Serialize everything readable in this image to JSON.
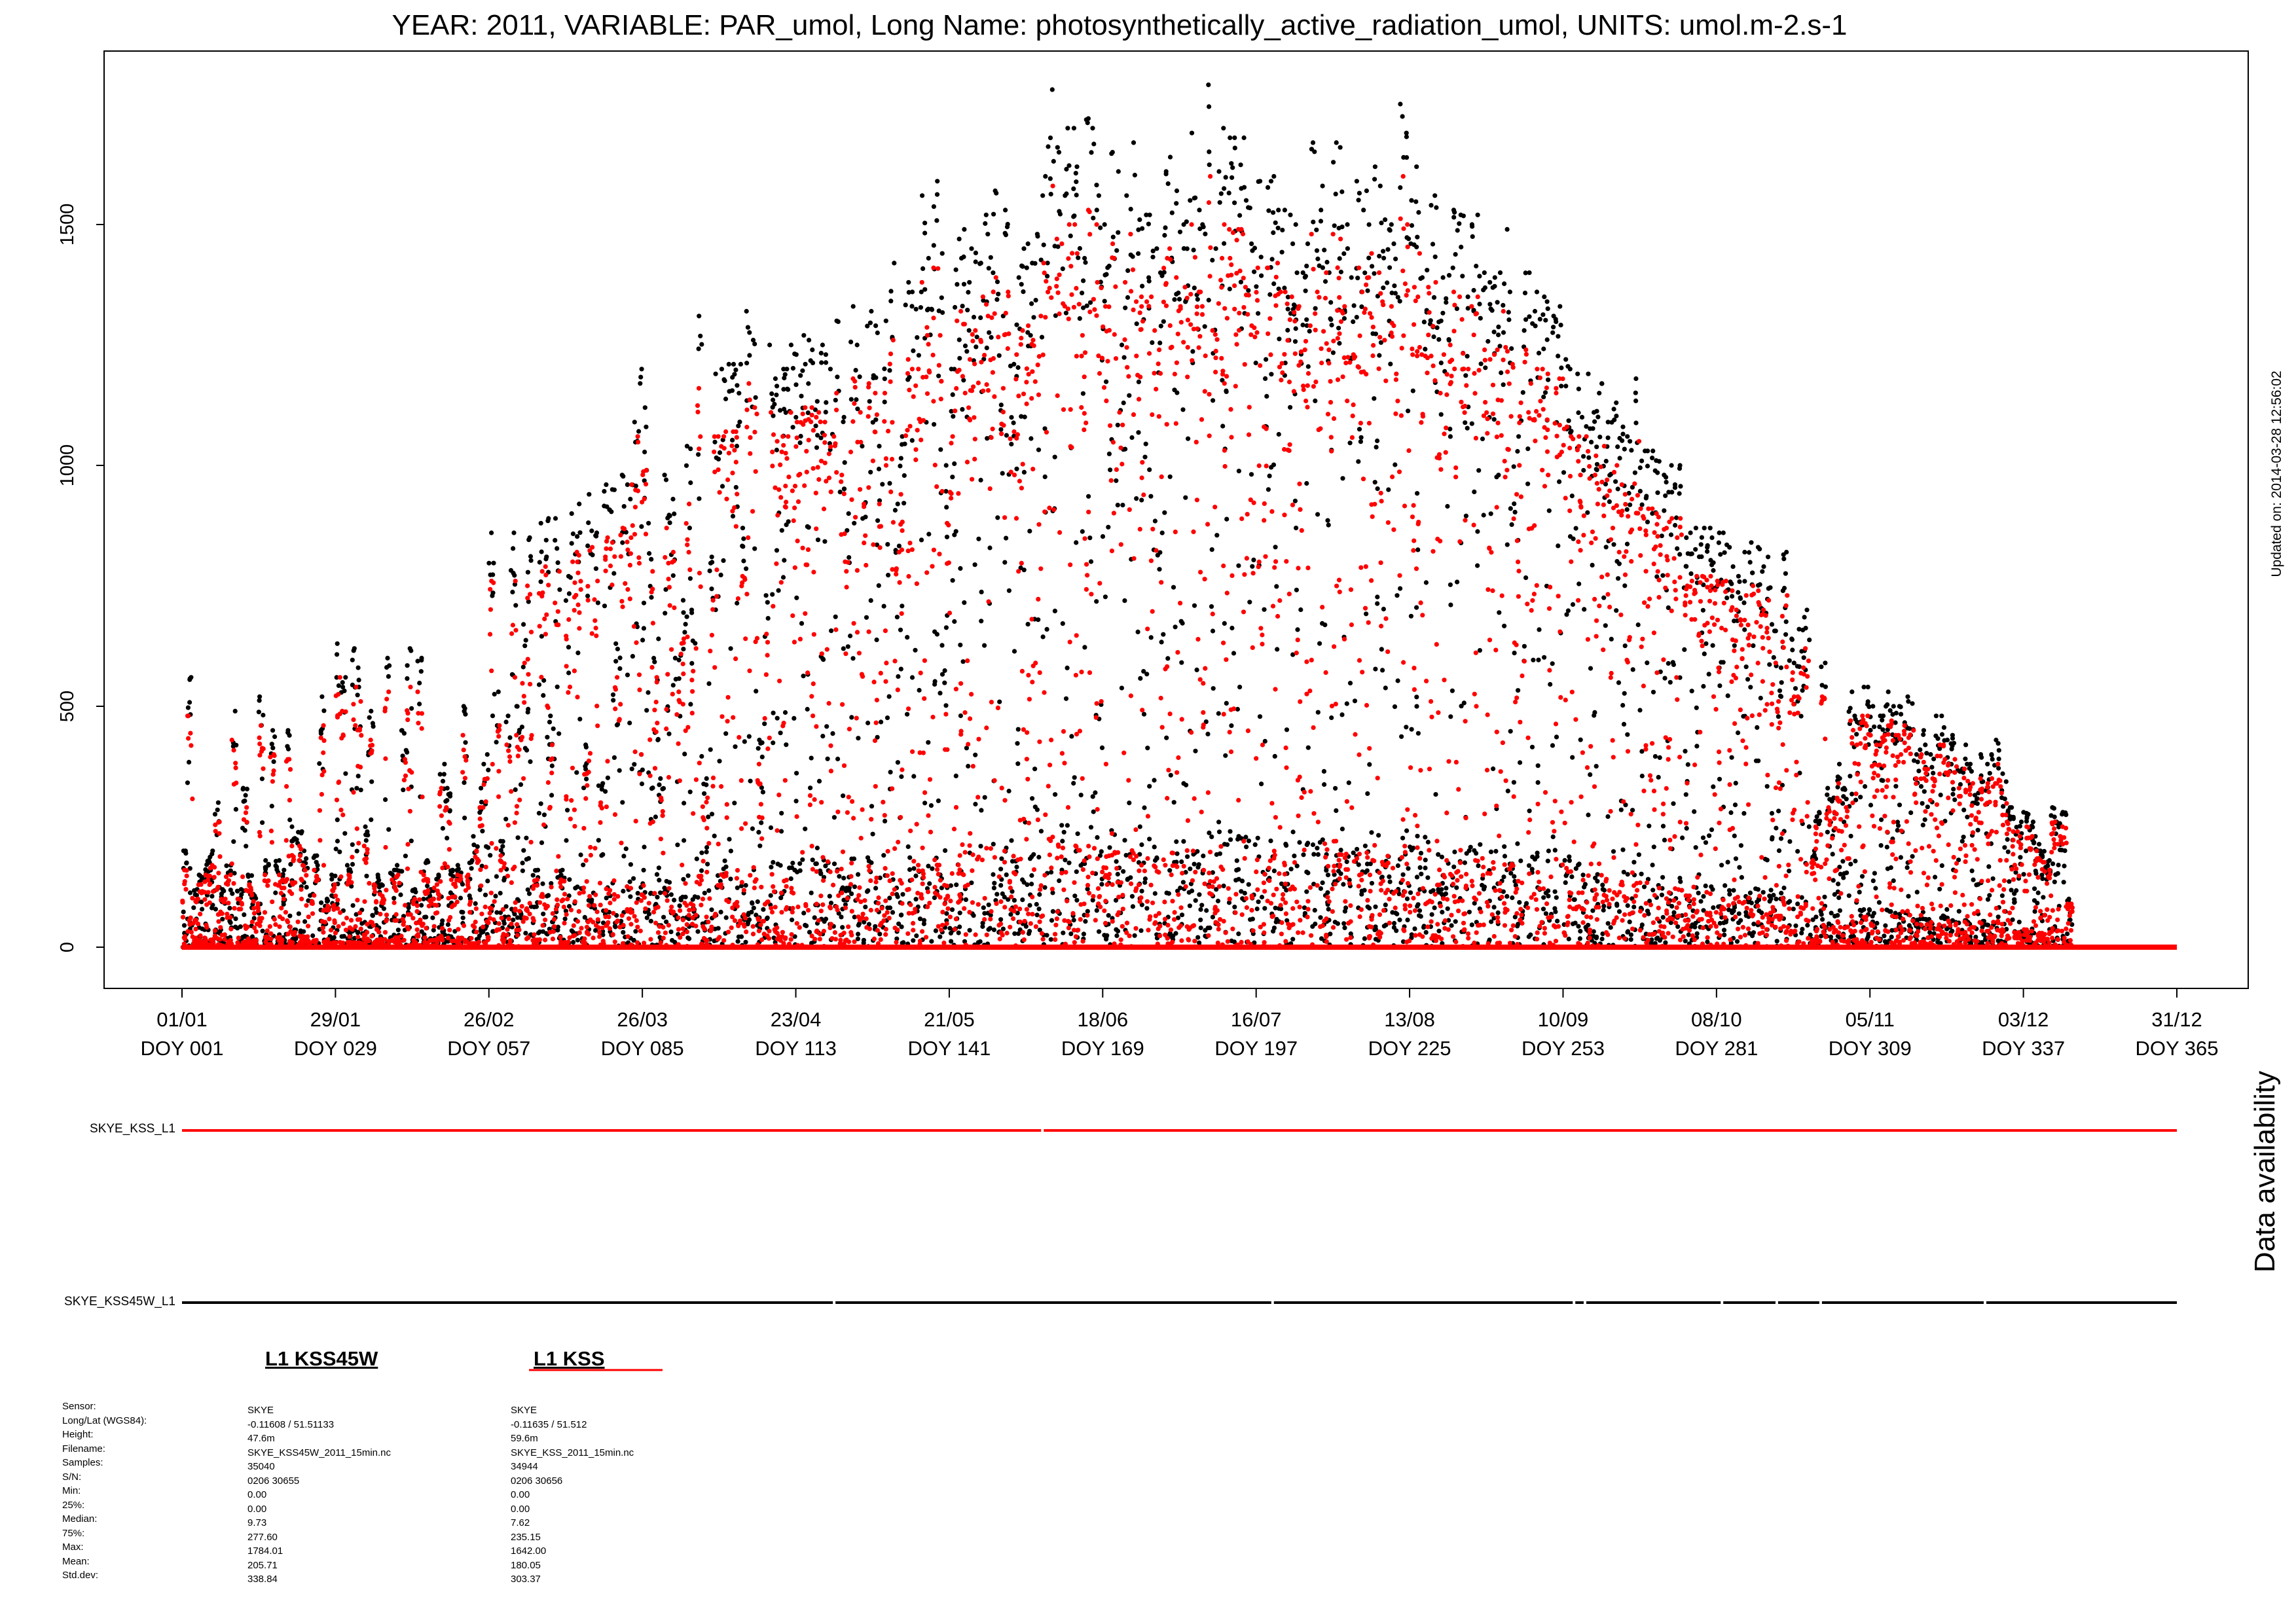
{
  "title": "YEAR: 2011, VARIABLE: PAR_umol, Long Name: photosynthetically_active_radiation_umol, UNITS: umol.m-2.s-1",
  "updated_text": "Updated on: 2014-03-28 12:56:02",
  "availability_title": "Data availability",
  "chart_data": {
    "type": "scatter",
    "title": "YEAR: 2011, VARIABLE: PAR_umol, Long Name: photosynthetically_active_radiation_umol, UNITS: umol.m-2.s-1",
    "xlabel": "",
    "ylabel": "",
    "xlim": [
      1,
      365
    ],
    "ylim": [
      0,
      1800
    ],
    "yticks": [
      0,
      500,
      1000,
      1500
    ],
    "xticks": [
      {
        "date": "01/01",
        "doy": "DOY 001",
        "value": 1
      },
      {
        "date": "29/01",
        "doy": "DOY 029",
        "value": 29
      },
      {
        "date": "26/02",
        "doy": "DOY 057",
        "value": 57
      },
      {
        "date": "26/03",
        "doy": "DOY 085",
        "value": 85
      },
      {
        "date": "23/04",
        "doy": "DOY 113",
        "value": 113
      },
      {
        "date": "21/05",
        "doy": "DOY 141",
        "value": 141
      },
      {
        "date": "18/06",
        "doy": "DOY 169",
        "value": 169
      },
      {
        "date": "16/07",
        "doy": "DOY 197",
        "value": 197
      },
      {
        "date": "13/08",
        "doy": "DOY 225",
        "value": 225
      },
      {
        "date": "10/09",
        "doy": "DOY 253",
        "value": 253
      },
      {
        "date": "08/10",
        "doy": "DOY 281",
        "value": 281
      },
      {
        "date": "05/11",
        "doy": "DOY 309",
        "value": 309
      },
      {
        "date": "03/12",
        "doy": "DOY 337",
        "value": 337
      },
      {
        "date": "31/12",
        "doy": "DOY 365",
        "value": 365
      }
    ],
    "series": [
      {
        "name": "L1 KSS45W",
        "color": "#000000",
        "daily_max": [
          200,
          560,
          120,
          150,
          180,
          200,
          300,
          120,
          170,
          490,
          120,
          330,
          150,
          110,
          520,
          180,
          450,
          180,
          160,
          450,
          250,
          240,
          200,
          110,
          190,
          520,
          100,
          150,
          630,
          560,
          170,
          620,
          580,
          250,
          490,
          150,
          130,
          600,
          160,
          170,
          450,
          620,
          120,
          600,
          180,
          120,
          150,
          380,
          330,
          160,
          170,
          500,
          180,
          230,
          330,
          400,
          860,
          530,
          220,
          480,
          860,
          500,
          670,
          850,
          160,
          880,
          890,
          480,
          890,
          160,
          770,
          900,
          920,
          420,
          940,
          860,
          340,
          960,
          950,
          630,
          980,
          960,
          1090,
          1200,
          1120,
          880,
          640,
          350,
          980,
          930,
          600,
          720,
          1040,
          700,
          1310,
          350,
          810,
          1190,
          1200,
          1210,
          1210,
          1210,
          870,
          1320,
          1260,
          430,
          730,
          1250,
          1180,
          1200,
          1200,
          1250,
          1230,
          1270,
          1260,
          1240,
          1250,
          1230,
          1200,
          1300,
          1100,
          900,
          1330,
          1250,
          1040,
          1320,
          1290,
          1040,
          1300,
          1420,
          920,
          1060,
          1380,
          1360,
          1360,
          1560,
          1430,
          1590,
          1440,
          1000,
          1200,
          1470,
          1490,
          1380,
          1450,
          1420,
          1520,
          1480,
          1570,
          1310,
          1530,
          1210,
          1390,
          1450,
          1460,
          1420,
          1480,
          1600,
          1780,
          1660,
          1650,
          1700,
          1700,
          1620,
          1430,
          1720,
          1700,
          1560,
          1500,
          1650,
          1610,
          1250,
          1560,
          1670,
          1510,
          1520,
          1520,
          1450,
          1400,
          1610,
          1640,
          1570,
          1500,
          1550,
          1690,
          1530,
          1500,
          1790,
          1450,
          1610,
          1700,
          1680,
          1680,
          1680,
          1550,
          1460,
          1590,
          1220,
          1590,
          1600,
          1530,
          1530,
          1520,
          1500,
          1400,
          1460,
          1670,
          1530,
          1580,
          1400,
          1670,
          1660,
          1500,
          1390,
          1590,
          1530,
          1570,
          1620,
          1580,
          1510,
          1500,
          1460,
          1750,
          1690,
          1550,
          1620,
          1390,
          1540,
          1560,
          1300,
          1390,
          1410,
          1530,
          1520,
          1350,
          1500,
          1520,
          1400,
          1380,
          1390,
          1400,
          1490,
          1360,
          1060,
          1280,
          1400,
          1320,
          1360,
          1350,
          1340,
          1310,
          1330,
          1220,
          1200,
          1190,
          1100,
          1190,
          1110,
          1150,
          1170,
          1090,
          1130,
          1080,
          1060,
          1050,
          1180,
          1030,
          1030,
          1030,
          1010,
          980,
          1000,
          960,
          1000,
          850,
          860,
          870,
          870,
          870,
          850,
          860,
          860,
          830,
          790,
          770,
          820,
          840,
          830,
          790,
          810,
          670,
          580,
          820,
          640,
          590,
          660,
          700,
          200,
          280,
          590,
          330,
          310,
          380,
          330,
          530,
          480,
          540,
          540,
          500,
          480,
          500,
          530,
          500,
          500,
          520,
          510,
          400,
          450,
          420,
          400,
          480,
          480,
          430,
          440,
          370,
          420,
          380,
          320,
          400,
          380,
          400,
          430,
          360,
          290,
          270,
          260,
          280,
          260,
          230,
          200,
          180,
          290,
          260,
          280,
          100
        ]
      },
      {
        "name": "L1 KSS",
        "color": "#ff0000",
        "daily_max": [
          160,
          480,
          100,
          130,
          150,
          170,
          260,
          100,
          150,
          430,
          100,
          290,
          130,
          95,
          460,
          150,
          400,
          150,
          140,
          390,
          210,
          210,
          170,
          95,
          160,
          460,
          85,
          130,
          560,
          490,
          150,
          540,
          510,
          210,
          430,
          130,
          110,
          530,
          140,
          150,
          390,
          540,
          100,
          530,
          150,
          100,
          130,
          330,
          290,
          140,
          150,
          440,
          150,
          200,
          290,
          350,
          760,
          460,
          190,
          420,
          760,
          440,
          590,
          750,
          140,
          780,
          790,
          420,
          780,
          140,
          680,
          800,
          820,
          360,
          830,
          760,
          300,
          850,
          840,
          560,
          870,
          850,
          960,
          1060,
          990,
          780,
          560,
          310,
          870,
          820,
          530,
          640,
          920,
          620,
          1160,
          310,
          720,
          1060,
          1060,
          1070,
          1070,
          1070,
          770,
          1170,
          1120,
          380,
          650,
          1110,
          1050,
          1060,
          1060,
          1110,
          1090,
          1120,
          1120,
          1100,
          1110,
          1090,
          1060,
          1150,
          980,
          800,
          1180,
          1110,
          920,
          1170,
          1150,
          920,
          1150,
          1260,
          820,
          940,
          1220,
          1200,
          1200,
          1380,
          1270,
          1410,
          1270,
          880,
          1060,
          1300,
          1320,
          1220,
          1280,
          1260,
          1350,
          1310,
          1390,
          1160,
          1360,
          1070,
          1230,
          1280,
          1290,
          1260,
          1310,
          1420,
          1580,
          1470,
          1460,
          1500,
          1500,
          1440,
          1270,
          1530,
          1500,
          1380,
          1330,
          1460,
          1430,
          1110,
          1380,
          1480,
          1340,
          1350,
          1350,
          1280,
          1240,
          1430,
          1450,
          1390,
          1330,
          1370,
          1500,
          1360,
          1330,
          1600,
          1280,
          1430,
          1500,
          1490,
          1490,
          1490,
          1370,
          1290,
          1410,
          1080,
          1410,
          1420,
          1360,
          1360,
          1350,
          1330,
          1240,
          1290,
          1480,
          1360,
          1400,
          1240,
          1480,
          1470,
          1330,
          1230,
          1410,
          1360,
          1390,
          1440,
          1400,
          1340,
          1330,
          1290,
          1600,
          1500,
          1370,
          1440,
          1230,
          1370,
          1380,
          1150,
          1230,
          1250,
          1360,
          1350,
          1200,
          1330,
          1350,
          1240,
          1220,
          1230,
          1240,
          1320,
          1210,
          940,
          1130,
          1240,
          1170,
          1200,
          1200,
          1190,
          1160,
          1180,
          1080,
          1060,
          1060,
          980,
          1060,
          980,
          1020,
          1040,
          970,
          1000,
          960,
          940,
          930,
          1050,
          910,
          910,
          910,
          900,
          870,
          890,
          850,
          890,
          750,
          760,
          770,
          770,
          770,
          750,
          760,
          760,
          740,
          700,
          680,
          730,
          750,
          740,
          700,
          720,
          590,
          510,
          730,
          570,
          520,
          580,
          620,
          180,
          250,
          520,
          290,
          280,
          340,
          290,
          470,
          420,
          480,
          480,
          440,
          420,
          440,
          470,
          440,
          440,
          460,
          450,
          350,
          400,
          370,
          350,
          420,
          420,
          380,
          390,
          330,
          370,
          340,
          280,
          350,
          340,
          350,
          380,
          320,
          260,
          240,
          230,
          250,
          230,
          200,
          180,
          160,
          260,
          230,
          250,
          90
        ]
      }
    ]
  },
  "availability": {
    "rows": [
      {
        "label": "SKYE_KSS_L1",
        "color": "#ff0000",
        "gaps_doy": [
          158
        ]
      },
      {
        "label": "SKYE_KSS45W_L1",
        "color": "#000000",
        "gaps_doy": [
          120,
          200,
          255,
          257,
          282,
          292,
          300,
          330
        ]
      }
    ]
  },
  "legend": [
    {
      "name": "L1 KSS45W",
      "color": "#000000"
    },
    {
      "name": "L1 KSS",
      "color": "#ff0000"
    }
  ],
  "stats": {
    "labels": [
      "Sensor:",
      "Long/Lat (WGS84):",
      "Height:",
      "Filename:",
      "Samples:",
      "S/N:",
      "Min:",
      "25%:",
      "Median:",
      "75%:",
      "Max:",
      "Mean:",
      "Std.dev:"
    ],
    "kss45w": [
      "SKYE",
      "-0.11608 / 51.51133",
      "47.6m",
      "SKYE_KSS45W_2011_15min.nc",
      "35040",
      "0206 30655",
      "0.00",
      "0.00",
      "9.73",
      "277.60",
      "1784.01",
      "205.71",
      "338.84"
    ],
    "kss": [
      "SKYE",
      "-0.11635 / 51.512",
      "59.6m",
      "SKYE_KSS_2011_15min.nc",
      "34944",
      "0206 30656",
      "0.00",
      "0.00",
      "7.62",
      "235.15",
      "1642.00",
      "180.05",
      "303.37"
    ]
  }
}
